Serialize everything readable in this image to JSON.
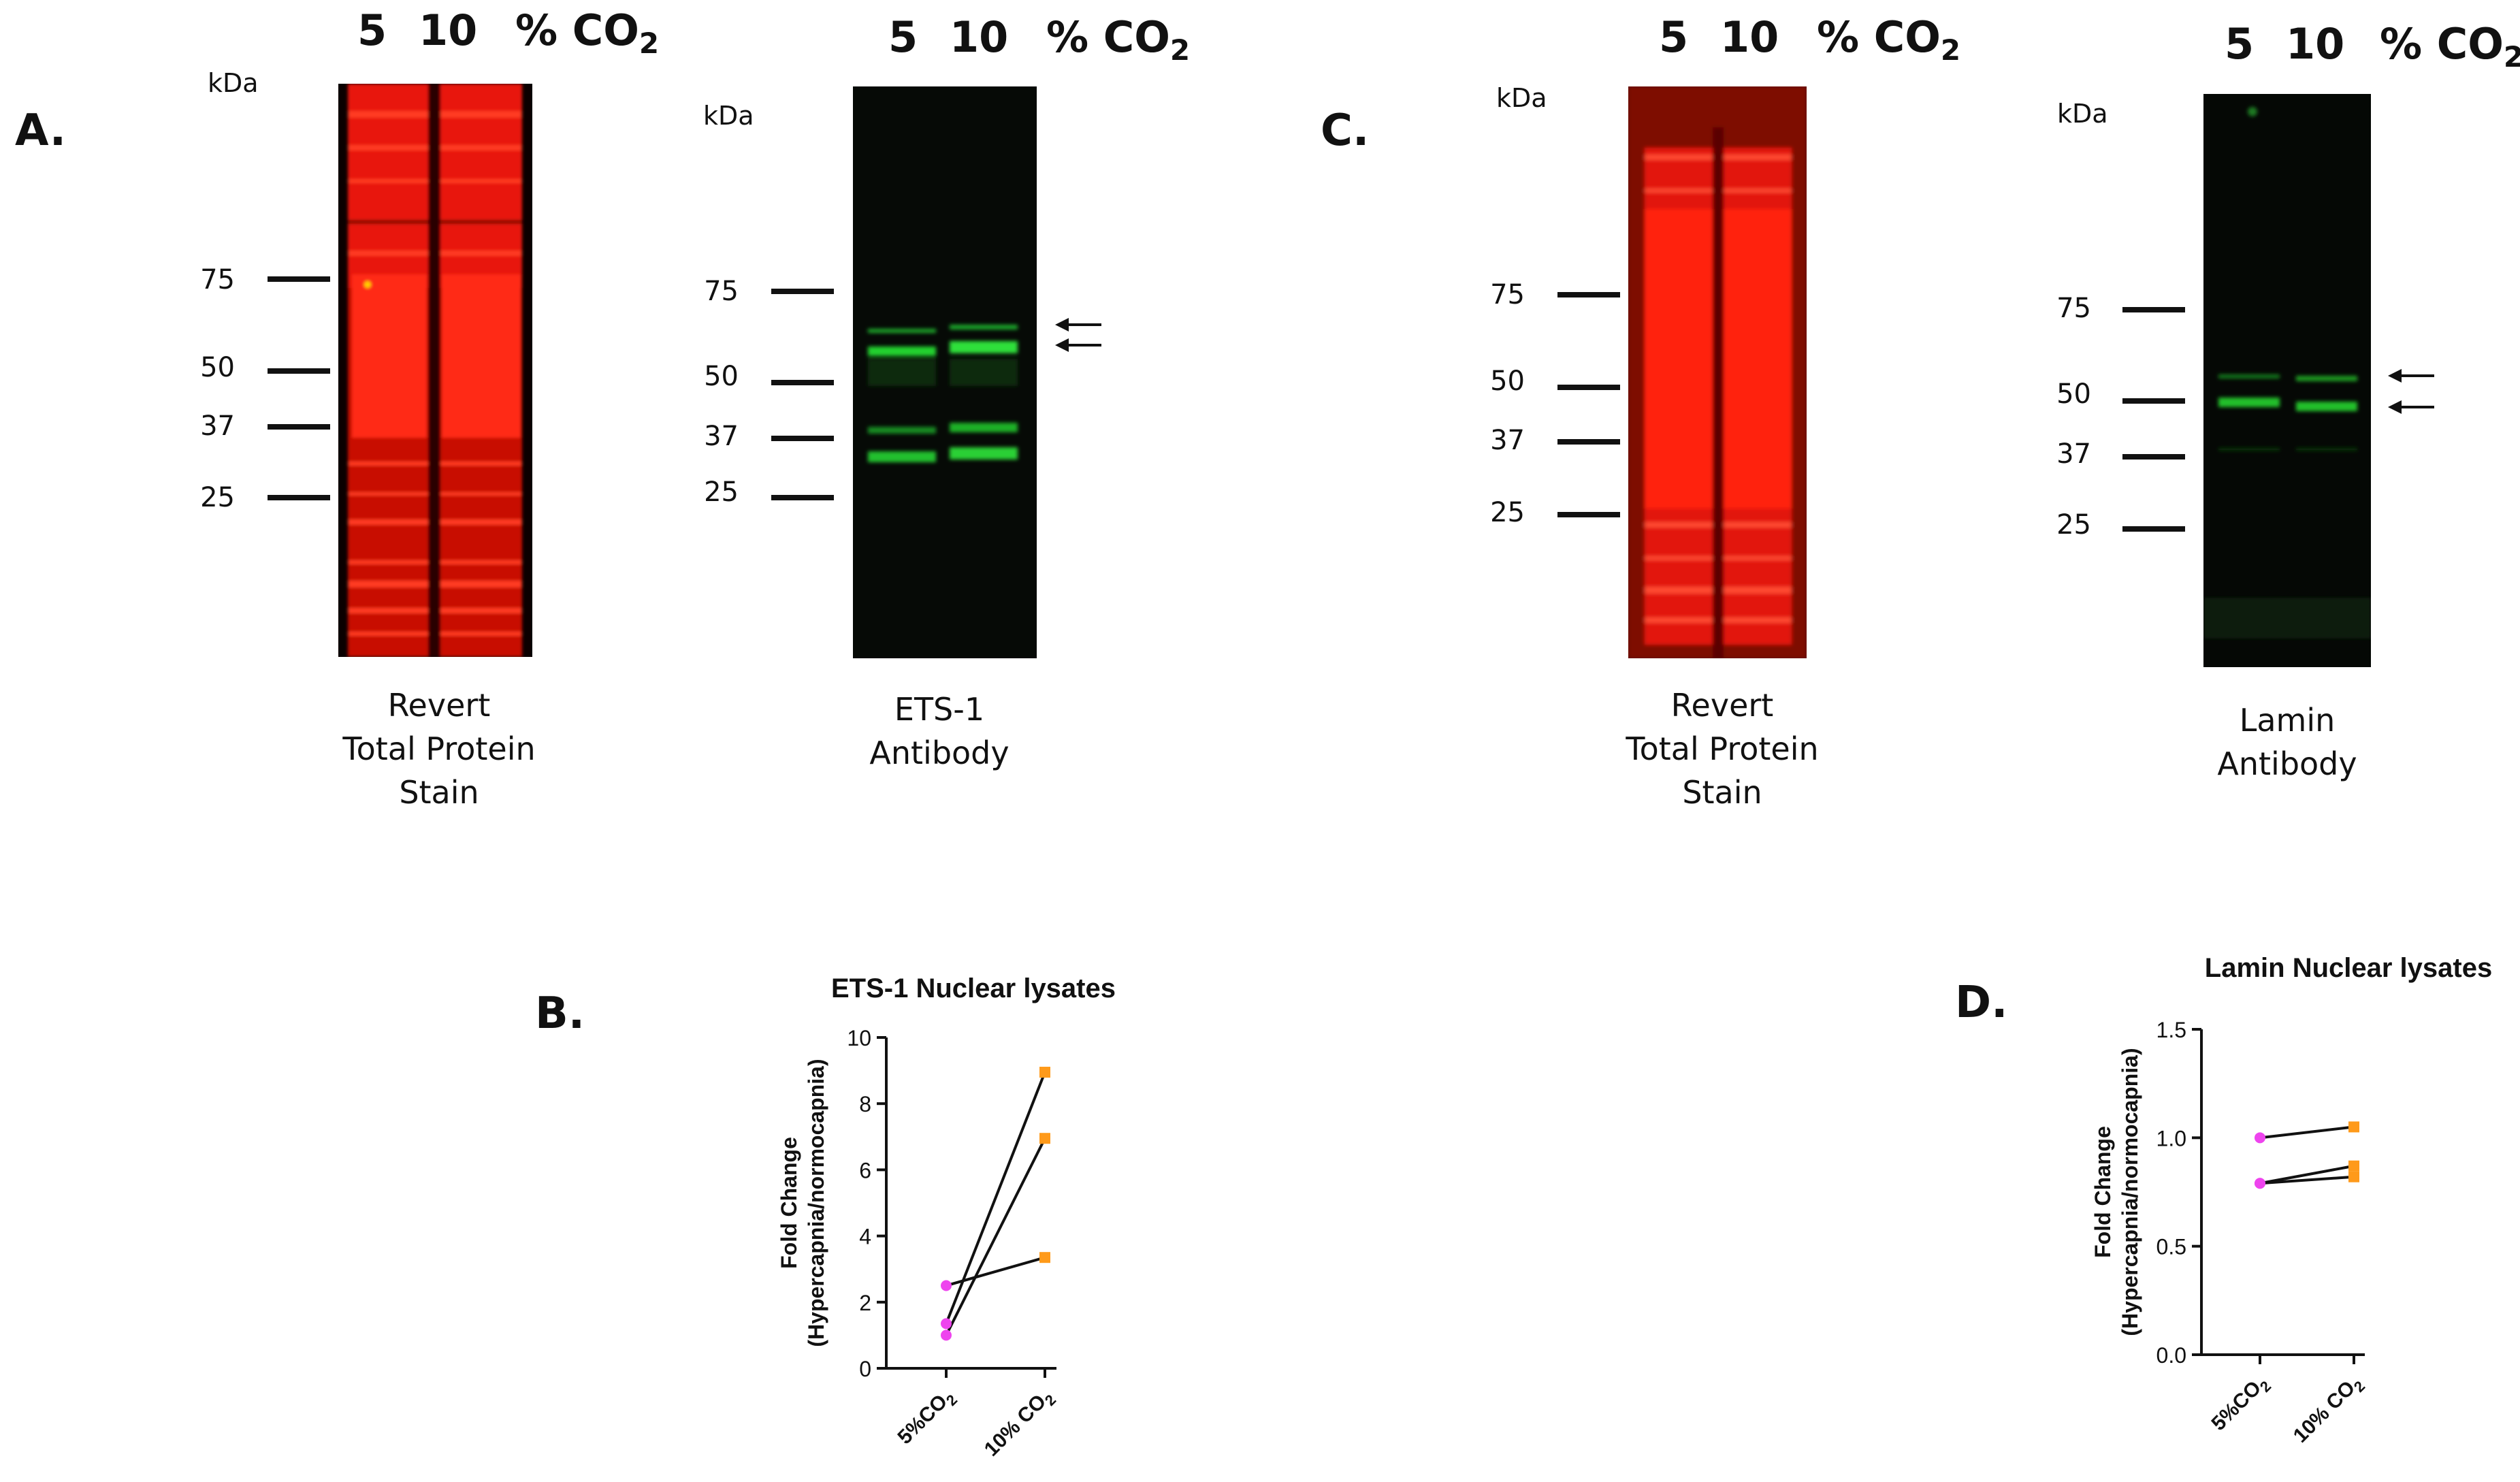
{
  "panels": {
    "A": {
      "letter": "A.",
      "blot_revert": {
        "lanes": [
          "5",
          "10"
        ],
        "unit": "% CO",
        "unit_sub": "2",
        "kda_label": "kDa",
        "markers": [
          "75",
          "50",
          "37",
          "25"
        ],
        "caption": [
          "Revert",
          "Total Protein",
          "Stain"
        ],
        "color": "#ff1a0a"
      },
      "blot_antibody": {
        "lanes": [
          "5",
          "10"
        ],
        "unit": "% CO",
        "unit_sub": "2",
        "kda_label": "kDa",
        "markers": [
          "75",
          "50",
          "37",
          "25"
        ],
        "caption": [
          "ETS-1",
          "Antibody"
        ],
        "color": "#19d024"
      }
    },
    "B": {
      "letter": "B."
    },
    "C": {
      "letter": "C.",
      "blot_revert": {
        "lanes": [
          "5",
          "10"
        ],
        "unit": "% CO",
        "unit_sub": "2",
        "kda_label": "kDa",
        "markers": [
          "75",
          "50",
          "37",
          "25"
        ],
        "caption": [
          "Revert",
          "Total Protein",
          "Stain"
        ],
        "color": "#ff1a0a"
      },
      "blot_antibody": {
        "lanes": [
          "5",
          "10"
        ],
        "unit": "% CO",
        "unit_sub": "2",
        "kda_label": "kDa",
        "markers": [
          "75",
          "50",
          "37",
          "25"
        ],
        "caption": [
          "Lamin",
          "Antibody"
        ],
        "color": "#19d024"
      }
    },
    "D": {
      "letter": "D."
    }
  },
  "chart_data": [
    {
      "type": "line",
      "title": "ETS-1 Nuclear lysates",
      "ylabel_line1": "Fold Change",
      "ylabel_line2": "(Hypercapnia/normocapnia)",
      "categories": [
        "5%CO",
        "10% CO"
      ],
      "category_sub": "2",
      "ylim": [
        0,
        10
      ],
      "yticks": [
        "0",
        "2",
        "4",
        "6",
        "8",
        "10"
      ],
      "ytick_values": [
        0,
        2,
        4,
        6,
        8,
        10
      ],
      "pairs": [
        [
          1.0,
          6.95
        ],
        [
          1.35,
          8.95
        ],
        [
          2.5,
          3.35
        ]
      ],
      "colors": {
        "first": "#ee44ee",
        "second": "#ff9a1a",
        "line": "#111111"
      }
    },
    {
      "type": "line",
      "title": "Lamin Nuclear lysates",
      "ylabel_line1": "Fold Change",
      "ylabel_line2": "(Hypercapnia/normocapnia)",
      "categories": [
        "5%CO",
        "10% CO"
      ],
      "category_sub": "2",
      "ylim": [
        0,
        1.5
      ],
      "yticks": [
        "0.0",
        "0.5",
        "1.0",
        "1.5"
      ],
      "ytick_values": [
        0,
        0.5,
        1.0,
        1.5
      ],
      "pairs": [
        [
          1.0,
          1.05
        ],
        [
          0.79,
          0.87
        ],
        [
          0.79,
          0.82
        ]
      ],
      "colors": {
        "first": "#ee44ee",
        "second": "#ff9a1a",
        "line": "#111111"
      }
    }
  ]
}
